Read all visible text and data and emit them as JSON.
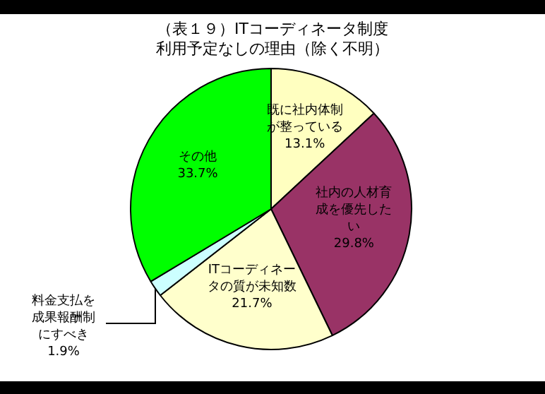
{
  "chart_data": {
    "type": "pie",
    "title": "（表１９）ITコーディネータ制度利用予定なしの理由（除く不明）",
    "categories": [
      "既に社内体制が整っている",
      "社内の人材育成を優先したい",
      "ITコーディネータの質が未知数",
      "料金支払を成果報酬制にすべき",
      "その他"
    ],
    "values": [
      13.1,
      29.8,
      21.7,
      1.9,
      33.7
    ],
    "colors": [
      "#ffffc0",
      "#993366",
      "#ffffcc",
      "#ccffff",
      "#00ff00"
    ],
    "value_labels": [
      "13.1%",
      "29.8%",
      "21.7%",
      "1.9%",
      "33.7%"
    ],
    "legend": false
  }
}
